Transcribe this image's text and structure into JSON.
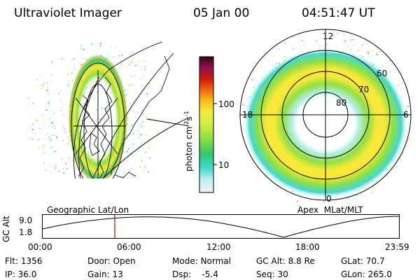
{
  "header": {
    "title": "Ultraviolet Imager",
    "date": "05 Jan 00",
    "time": "04:51:47 UT"
  },
  "colorbar": {
    "label": "photon cm",
    "label_sup1": "-2",
    "label_mid": "s",
    "label_sup2": "-1",
    "ticks": [
      "100",
      "10"
    ]
  },
  "geo_panel": {
    "caption": "Geographic Lat/Lon"
  },
  "apex_panel": {
    "caption": "Apex  MLat/MLT",
    "mlt_labels": {
      "top": "12",
      "left": "18",
      "right": "6",
      "bottom": "0"
    },
    "lat_labels": [
      "60",
      "70",
      "80"
    ]
  },
  "altitude_plot": {
    "ylabel": "GC Alt",
    "yticks": [
      "9.0",
      "1.8"
    ],
    "xticks": [
      "00:00",
      "06:00",
      "12:00",
      "18:00",
      "23:59"
    ]
  },
  "status": {
    "flt_label": "Flt:",
    "flt_value": "1356",
    "ip_label": "IP:",
    "ip_value": "36.0",
    "door_label": "Door:",
    "door_value": "Open",
    "gain_label": "Gain:",
    "gain_value": "13",
    "mode_label": "Mode:",
    "mode_value": "Normal",
    "dsp_label": "Dsp:",
    "dsp_value": "-5.4",
    "gcalt_label": "GC Alt:",
    "gcalt_value": "8.8 Re",
    "seq_label": "Seq:",
    "seq_value": "30",
    "glat_label": "GLat:",
    "glat_value": "70.7",
    "glon_label": "GLon:",
    "glon_value": "265.0"
  },
  "colors": {
    "background": "#ffffff",
    "cursor": "#cc0000",
    "colormap": [
      "#f2f2f2",
      "#b8f0f0",
      "#40d8d0",
      "#30c870",
      "#90e040",
      "#d8f040",
      "#f8e838",
      "#f8b818",
      "#f06010",
      "#d01810",
      "#901050",
      "#300818"
    ]
  }
}
